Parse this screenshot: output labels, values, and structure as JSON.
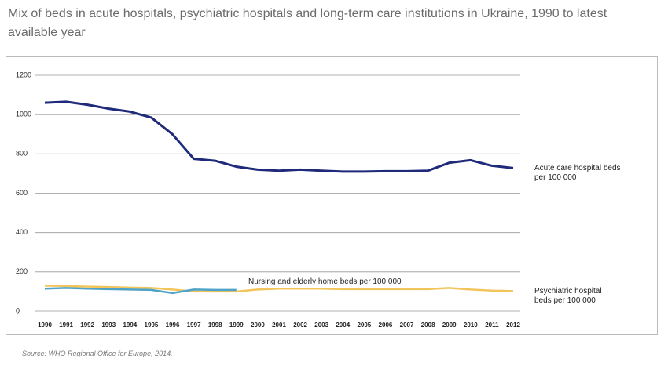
{
  "chart_data": {
    "type": "line",
    "title": "Mix of beds in acute hospitals, psychiatric hospitals and long-term care institutions in Ukraine, 1990 to latest available year",
    "source": "Source: WHO Regional Office for Europe, 2014.",
    "categories": [
      "1990",
      "1991",
      "1992",
      "1993",
      "1994",
      "1995",
      "1996",
      "1997",
      "1998",
      "1999",
      "2000",
      "2001",
      "2002",
      "2003",
      "2004",
      "2005",
      "2006",
      "2007",
      "2008",
      "2009",
      "2010",
      "2011",
      "2012"
    ],
    "ylim": [
      0,
      1200
    ],
    "yticks": [
      0,
      200,
      400,
      600,
      800,
      1000,
      1200
    ],
    "grid": true,
    "series": [
      {
        "name": "Acute care hospital beds per 100 000",
        "color": "#1f2a7a",
        "values": [
          1060,
          1065,
          1050,
          1030,
          1015,
          985,
          900,
          775,
          765,
          735,
          720,
          715,
          720,
          715,
          710,
          710,
          712,
          712,
          715,
          755,
          768,
          740,
          728
        ]
      },
      {
        "name": "Psychiatric hospital beds per 100 000",
        "color": "#f2c55c",
        "values": [
          130,
          128,
          125,
          123,
          120,
          118,
          110,
          100,
          100,
          100,
          110,
          115,
          115,
          115,
          112,
          112,
          112,
          112,
          112,
          118,
          110,
          105,
          102
        ]
      },
      {
        "name": "Nursing and elderly home beds per 100 000",
        "color": "#4fa3c7",
        "values": [
          115,
          118,
          115,
          112,
          110,
          108,
          92,
          110,
          108,
          108,
          null,
          null,
          null,
          null,
          null,
          null,
          null,
          null,
          null,
          null,
          null,
          null,
          null
        ]
      }
    ]
  }
}
